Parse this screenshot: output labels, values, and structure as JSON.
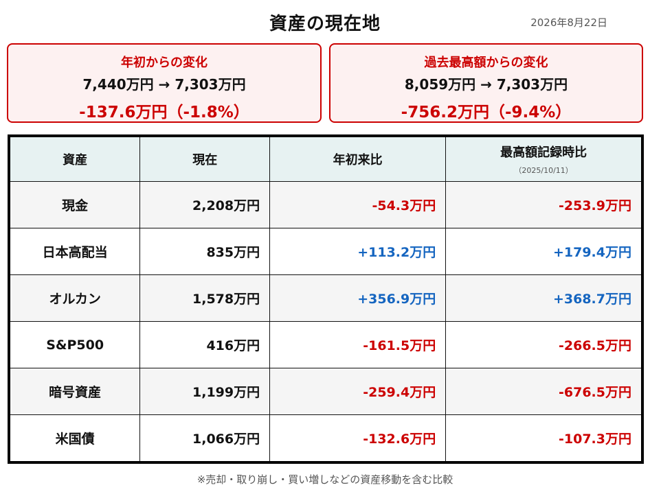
{
  "title": "資産の現在地",
  "date": "2026年8月22日",
  "summary": [
    {
      "label": "年初からの変化",
      "range": "7,440万円 → 7,303万円",
      "change": "-137.6万円（-1.8%）"
    },
    {
      "label": "過去最高額からの変化",
      "range": "8,059万円 → 7,303万円",
      "change": "-756.2万円（-9.4%）"
    }
  ],
  "table": {
    "headers": {
      "asset": "資産",
      "current": "現在",
      "ytd": "年初来比",
      "peak": "最高額記録時比",
      "peak_date": "（2025/10/11）"
    },
    "rows": [
      {
        "asset": "現金",
        "current": "2,208万円",
        "ytd": "-54.3万円",
        "peak": "-253.9万円"
      },
      {
        "asset": "日本高配当",
        "current": "835万円",
        "ytd": "+113.2万円",
        "peak": "+179.4万円"
      },
      {
        "asset": "オルカン",
        "current": "1,578万円",
        "ytd": "+356.9万円",
        "peak": "+368.7万円"
      },
      {
        "asset": "S&P500",
        "current": "416万円",
        "ytd": "-161.5万円",
        "peak": "-266.5万円"
      },
      {
        "asset": "暗号資産",
        "current": "1,199万円",
        "ytd": "-259.4万円",
        "peak": "-676.5万円"
      },
      {
        "asset": "米国債",
        "current": "1,066万円",
        "ytd": "-132.6万円",
        "peak": "-107.3万円"
      }
    ]
  },
  "colors": {
    "negative": "#cc0000",
    "positive": "#1565c0",
    "header_bg": "#e7f2f2",
    "box_bg": "#fdf1f1"
  },
  "footnote": "※売却・取り崩し・買い増しなどの資産移動を含む比較"
}
